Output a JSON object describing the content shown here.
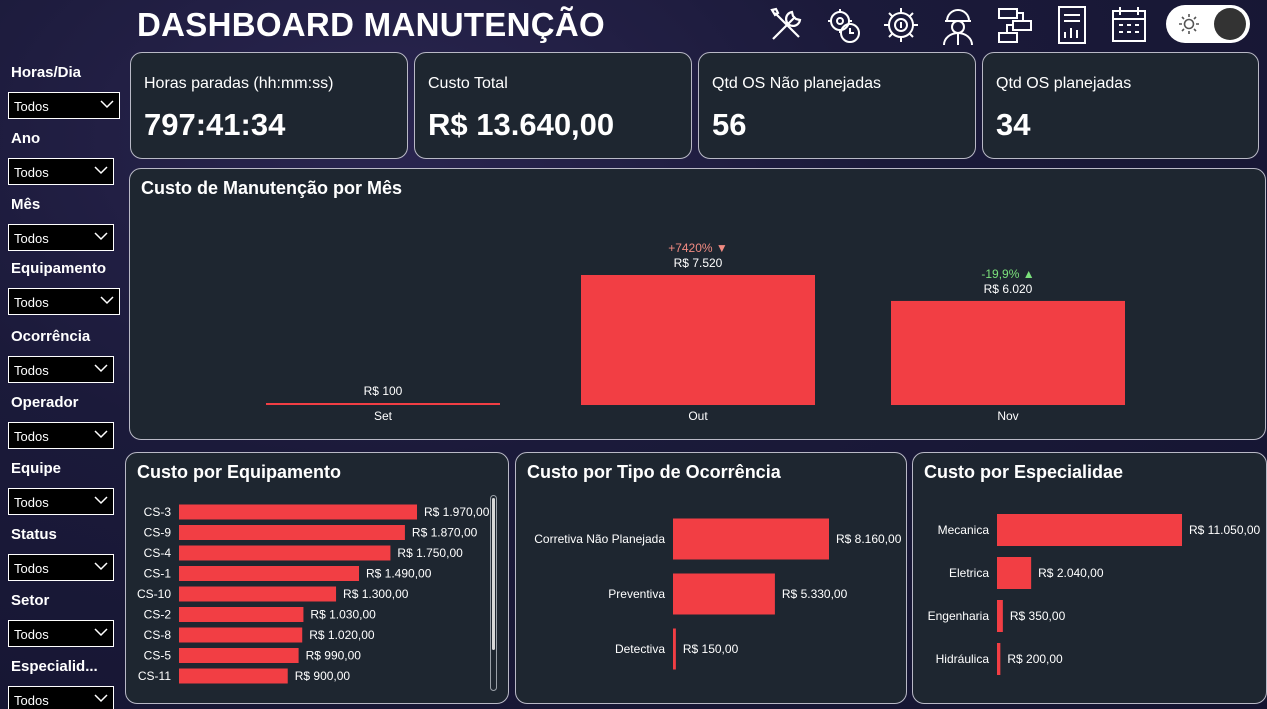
{
  "header": {
    "title": "DASHBOARD MANUTENÇÃO"
  },
  "toolbar_icons": [
    "tools-icon",
    "maintenance-clock-icon",
    "cost-gear-icon",
    "engineer-icon",
    "workflow-icon",
    "report-icon",
    "calendar-icon"
  ],
  "filters": [
    {
      "label": "Horas/Dia",
      "value": "Todos"
    },
    {
      "label": "Ano",
      "value": "Todos"
    },
    {
      "label": "Mês",
      "value": "Todos"
    },
    {
      "label": "Equipamento",
      "value": "Todos"
    },
    {
      "label": "Ocorrência",
      "value": "Todos"
    },
    {
      "label": "Operador",
      "value": "Todos"
    },
    {
      "label": "Equipe",
      "value": "Todos"
    },
    {
      "label": "Status",
      "value": "Todos"
    },
    {
      "label": "Setor",
      "value": "Todos"
    },
    {
      "label": "Especialid...",
      "value": "Todos"
    }
  ],
  "kpis": [
    {
      "label": "Horas paradas (hh:mm:ss)",
      "value": "797:41:34"
    },
    {
      "label": "Custo Total",
      "value": "R$ 13.640,00"
    },
    {
      "label": "Qtd OS Não planejadas",
      "value": "56"
    },
    {
      "label": "Qtd OS planejadas",
      "value": "34"
    }
  ],
  "colors": {
    "bar": "#f23e44",
    "panel": "#1e2630",
    "up": "#f28b82",
    "down": "#7be07b"
  },
  "chart_data": [
    {
      "type": "bar",
      "title": "Custo de Manutenção por Mês",
      "categories": [
        "Set",
        "Out",
        "Nov"
      ],
      "values": [
        100,
        7520,
        6020
      ],
      "data_labels": [
        "R$ 100",
        "R$ 7.520",
        "R$ 6.020"
      ],
      "variance_labels": [
        "",
        "+7420% ▼",
        "-19,9% ▲"
      ],
      "ylim": [
        0,
        8000
      ]
    },
    {
      "type": "bar",
      "orientation": "horizontal",
      "title": "Custo por Equipamento",
      "categories": [
        "CS-3",
        "CS-9",
        "CS-4",
        "CS-1",
        "CS-10",
        "CS-2",
        "CS-8",
        "CS-5",
        "CS-11"
      ],
      "values": [
        1970,
        1870,
        1750,
        1490,
        1300,
        1030,
        1020,
        990,
        900
      ],
      "data_labels": [
        "R$ 1.970,00",
        "R$ 1.870,00",
        "R$ 1.750,00",
        "R$ 1.490,00",
        "R$ 1.300,00",
        "R$ 1.030,00",
        "R$ 1.020,00",
        "R$ 990,00",
        "R$ 900,00"
      ]
    },
    {
      "type": "bar",
      "orientation": "horizontal",
      "title": "Custo por Tipo de Ocorrência",
      "categories": [
        "Corretiva Não Planejada",
        "Preventiva",
        "Detectiva"
      ],
      "values": [
        8160,
        5330,
        150
      ],
      "data_labels": [
        "R$ 8.160,00",
        "R$ 5.330,00",
        "R$ 150,00"
      ]
    },
    {
      "type": "bar",
      "orientation": "horizontal",
      "title": "Custo por Especialidae",
      "categories": [
        "Mecanica",
        "Eletrica",
        "Engenharia",
        "Hidráulica"
      ],
      "values": [
        11050,
        2040,
        350,
        200
      ],
      "data_labels": [
        "R$ 11.050,00",
        "R$ 2.040,00",
        "R$ 350,00",
        "R$ 200,00"
      ]
    }
  ]
}
